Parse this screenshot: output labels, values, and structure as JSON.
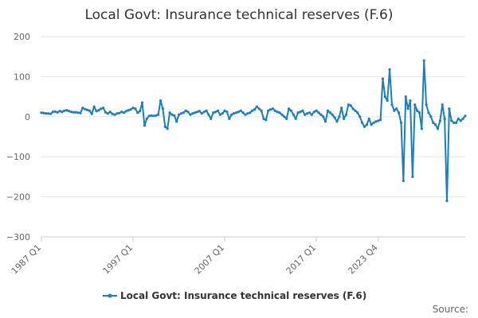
{
  "chart_data": {
    "type": "line",
    "title": "Local Govt: Insurance technical reserves (F.6)",
    "xlabel": "",
    "ylabel": "",
    "ylim": [
      -300,
      200
    ],
    "yticks": [
      200,
      100,
      0,
      -100,
      -200,
      -300
    ],
    "ytick_labels": [
      "200",
      "100",
      "0",
      "−100",
      "−200",
      "−300"
    ],
    "x_start_label": "1987 Q1",
    "xticks": [
      "1987 Q1",
      "1997 Q1",
      "2007 Q1",
      "2017 Q1",
      "2023 Q4"
    ],
    "grid": true,
    "legend_position": "bottom",
    "series": [
      {
        "name": "Local Govt: Insurance technical reserves (F.6)",
        "color": "#1a7fbf",
        "values": [
          10,
          9,
          8,
          8,
          7,
          12,
          13,
          11,
          14,
          12,
          15,
          16,
          14,
          12,
          11,
          11,
          10,
          9,
          22,
          19,
          17,
          15,
          7,
          25,
          14,
          16,
          20,
          22,
          11,
          8,
          12,
          7,
          5,
          8,
          9,
          12,
          10,
          14,
          16,
          18,
          22,
          20,
          10,
          14,
          35,
          -22,
          -5,
          2,
          3,
          2,
          3,
          5,
          40,
          20,
          -25,
          -30,
          10,
          5,
          3,
          -12,
          5,
          8,
          10,
          15,
          12,
          5,
          8,
          10,
          12,
          14,
          8,
          12,
          15,
          5,
          -5,
          10,
          12,
          15,
          5,
          8,
          15,
          12,
          -5,
          5,
          8,
          10,
          12,
          15,
          10,
          5,
          8,
          10,
          15,
          18,
          25,
          20,
          15,
          -5,
          -8,
          15,
          18,
          20,
          15,
          12,
          10,
          5,
          0,
          -5,
          20,
          15,
          5,
          -5,
          10,
          12,
          15,
          5,
          8,
          10,
          5,
          12,
          15,
          10,
          5,
          0,
          -12,
          15,
          10,
          5,
          -2,
          -12,
          0,
          22,
          -5,
          5,
          30,
          28,
          20,
          15,
          10,
          0,
          -15,
          -25,
          -20,
          -5,
          -20,
          -15,
          -12,
          -10,
          -8,
          95,
          50,
          40,
          118,
          30,
          15,
          20,
          10,
          -15,
          -160,
          50,
          20,
          40,
          -150,
          30,
          15,
          10,
          -30,
          140,
          30,
          10,
          0,
          -15,
          -20,
          -30,
          -10,
          30,
          -5,
          -210,
          20,
          -10,
          -15,
          -15,
          -5,
          -10,
          -5,
          2
        ]
      }
    ],
    "source_label": "Source:"
  }
}
